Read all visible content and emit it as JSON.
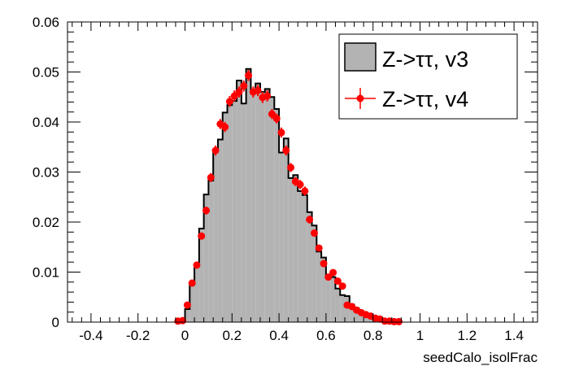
{
  "chart_data": {
    "type": "bar",
    "title": "",
    "xlabel": "seedCalo_isolFrac",
    "ylabel": "",
    "xlim": [
      -0.5,
      1.5
    ],
    "ylim": [
      0,
      0.06
    ],
    "grid": false,
    "legend_position": "top-right",
    "x_ticks": [
      "-0.4",
      "-0.2",
      "0",
      "0.2",
      "0.4",
      "0.6",
      "0.8",
      "1",
      "1.2",
      "1.4"
    ],
    "y_ticks": [
      "0",
      "0.01",
      "0.02",
      "0.03",
      "0.04",
      "0.05",
      "0.06"
    ],
    "bin_width": 0.02,
    "series": [
      {
        "name": "Z->ττ, v3",
        "style": "filled-histogram",
        "fill": "#b3b3b3",
        "line": "#000000",
        "bin_low_edges": [
          -0.04,
          -0.02,
          0,
          0.02,
          0.04,
          0.06,
          0.08,
          0.1,
          0.12,
          0.14,
          0.16,
          0.18,
          0.2,
          0.22,
          0.24,
          0.26,
          0.28,
          0.3,
          0.32,
          0.34,
          0.36,
          0.38,
          0.4,
          0.42,
          0.44,
          0.46,
          0.48,
          0.5,
          0.52,
          0.54,
          0.56,
          0.58,
          0.6,
          0.62,
          0.64,
          0.66,
          0.68,
          0.7,
          0.72,
          0.74,
          0.76,
          0.78,
          0.8,
          0.82,
          0.84,
          0.86,
          0.88,
          0.9
        ],
        "values": [
          0.0001,
          0.0002,
          0.0026,
          0.0075,
          0.0113,
          0.0187,
          0.0255,
          0.0283,
          0.0342,
          0.0365,
          0.0419,
          0.0434,
          0.0442,
          0.0483,
          0.0437,
          0.0506,
          0.0462,
          0.0477,
          0.046,
          0.0466,
          0.045,
          0.0426,
          0.0339,
          0.0367,
          0.0288,
          0.0294,
          0.0262,
          0.0254,
          0.022,
          0.0193,
          0.0141,
          0.0129,
          0.0094,
          0.009,
          0.0067,
          0.0054,
          0.0052,
          0.0035,
          0.0028,
          0.0022,
          0.0017,
          0.0012,
          0.0008,
          0.0005,
          0.0003,
          0.0002,
          0.0001,
          5e-05
        ]
      },
      {
        "name": "Z->ττ, v4",
        "style": "markers-with-errors",
        "color": "#ff0000",
        "x": [
          -0.03,
          -0.01,
          0.01,
          0.03,
          0.05,
          0.07,
          0.09,
          0.11,
          0.13,
          0.15,
          0.17,
          0.19,
          0.21,
          0.23,
          0.25,
          0.27,
          0.29,
          0.31,
          0.33,
          0.35,
          0.37,
          0.39,
          0.41,
          0.43,
          0.45,
          0.47,
          0.49,
          0.51,
          0.53,
          0.55,
          0.57,
          0.59,
          0.61,
          0.63,
          0.65,
          0.67,
          0.69,
          0.71,
          0.73,
          0.75,
          0.77,
          0.79,
          0.81,
          0.83,
          0.85,
          0.87,
          0.89,
          0.91
        ],
        "values": [
          0.0002,
          0.0003,
          0.0034,
          0.0078,
          0.0114,
          0.0172,
          0.0223,
          0.0289,
          0.0343,
          0.0396,
          0.039,
          0.0441,
          0.0452,
          0.046,
          0.0472,
          0.0493,
          0.046,
          0.0463,
          0.0449,
          0.0452,
          0.0416,
          0.0407,
          0.0379,
          0.0343,
          0.0309,
          0.0281,
          0.0275,
          0.0262,
          0.0205,
          0.0178,
          0.0148,
          0.0117,
          0.009,
          0.0099,
          0.0082,
          0.0072,
          0.0034,
          0.0031,
          0.0024,
          0.0019,
          0.0015,
          0.0012,
          0.0008,
          0.0006,
          0.0002,
          0.0002,
          0.0001,
          0.0001
        ],
        "errors": [
          0.0001,
          0.0001,
          0.0003,
          0.0005,
          0.0006,
          0.0007,
          0.0008,
          0.0009,
          0.001,
          0.001,
          0.001,
          0.0011,
          0.0011,
          0.0011,
          0.0011,
          0.0011,
          0.0011,
          0.0011,
          0.0011,
          0.0011,
          0.001,
          0.001,
          0.001,
          0.001,
          0.0009,
          0.0009,
          0.0009,
          0.0009,
          0.0008,
          0.0007,
          0.0006,
          0.0006,
          0.0005,
          0.0005,
          0.0005,
          0.0004,
          0.0003,
          0.0003,
          0.0003,
          0.0002,
          0.0002,
          0.0002,
          0.0002,
          0.0001,
          0.0001,
          0.0001,
          0.0001,
          0.0001
        ]
      }
    ]
  }
}
